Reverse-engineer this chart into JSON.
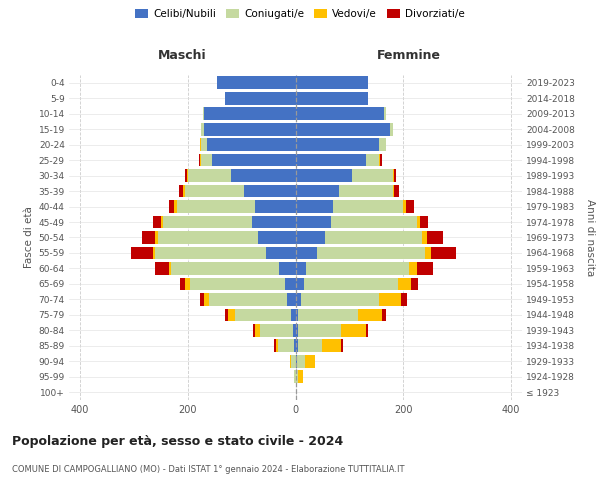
{
  "age_groups": [
    "100+",
    "95-99",
    "90-94",
    "85-89",
    "80-84",
    "75-79",
    "70-74",
    "65-69",
    "60-64",
    "55-59",
    "50-54",
    "45-49",
    "40-44",
    "35-39",
    "30-34",
    "25-29",
    "20-24",
    "15-19",
    "10-14",
    "5-9",
    "0-4"
  ],
  "birth_years": [
    "≤ 1923",
    "1924-1928",
    "1929-1933",
    "1934-1938",
    "1939-1943",
    "1944-1948",
    "1949-1953",
    "1954-1958",
    "1959-1963",
    "1964-1968",
    "1969-1973",
    "1974-1978",
    "1979-1983",
    "1984-1988",
    "1989-1993",
    "1994-1998",
    "1999-2003",
    "2004-2008",
    "2009-2013",
    "2014-2018",
    "2019-2023"
  ],
  "males": {
    "celibi": [
      0,
      0,
      0,
      2,
      5,
      8,
      15,
      20,
      30,
      55,
      70,
      80,
      75,
      95,
      120,
      155,
      165,
      170,
      170,
      130,
      145
    ],
    "coniugati": [
      0,
      2,
      8,
      30,
      60,
      105,
      145,
      175,
      200,
      205,
      185,
      165,
      145,
      110,
      80,
      20,
      10,
      5,
      2,
      0,
      0
    ],
    "vedovi": [
      0,
      0,
      3,
      5,
      10,
      12,
      10,
      10,
      5,
      5,
      5,
      5,
      5,
      3,
      2,
      2,
      2,
      0,
      0,
      0,
      0
    ],
    "divorziati": [
      0,
      0,
      0,
      2,
      3,
      5,
      8,
      10,
      25,
      40,
      25,
      15,
      10,
      8,
      3,
      2,
      0,
      0,
      0,
      0,
      0
    ]
  },
  "females": {
    "nubili": [
      0,
      0,
      2,
      5,
      5,
      5,
      10,
      15,
      20,
      40,
      55,
      65,
      70,
      80,
      105,
      130,
      155,
      175,
      165,
      135,
      135
    ],
    "coniugate": [
      0,
      5,
      15,
      45,
      80,
      110,
      145,
      175,
      190,
      200,
      180,
      160,
      130,
      100,
      75,
      25,
      12,
      5,
      2,
      0,
      0
    ],
    "vedove": [
      0,
      8,
      20,
      35,
      45,
      45,
      40,
      25,
      15,
      12,
      8,
      5,
      5,
      3,
      2,
      2,
      0,
      0,
      0,
      0,
      0
    ],
    "divorziate": [
      0,
      0,
      0,
      3,
      5,
      8,
      12,
      12,
      30,
      45,
      30,
      15,
      15,
      8,
      5,
      3,
      0,
      0,
      0,
      0,
      0
    ]
  },
  "colors": {
    "celibi": "#4472c4",
    "coniugati": "#c5d9a0",
    "vedovi": "#ffc000",
    "divorziati": "#c00000"
  },
  "title": "Popolazione per età, sesso e stato civile - 2024",
  "subtitle": "COMUNE DI CAMPOGALLIANO (MO) - Dati ISTAT 1° gennaio 2024 - Elaborazione TUTTITALIA.IT",
  "xlabel_left": "Maschi",
  "xlabel_right": "Femmine",
  "ylabel_left": "Fasce di età",
  "ylabel_right": "Anni di nascita",
  "xlim": 420,
  "xticks": [
    -400,
    -200,
    0,
    200,
    400
  ],
  "legend_labels": [
    "Celibi/Nubili",
    "Coniugati/e",
    "Vedovi/e",
    "Divorziati/e"
  ],
  "background_color": "#ffffff"
}
